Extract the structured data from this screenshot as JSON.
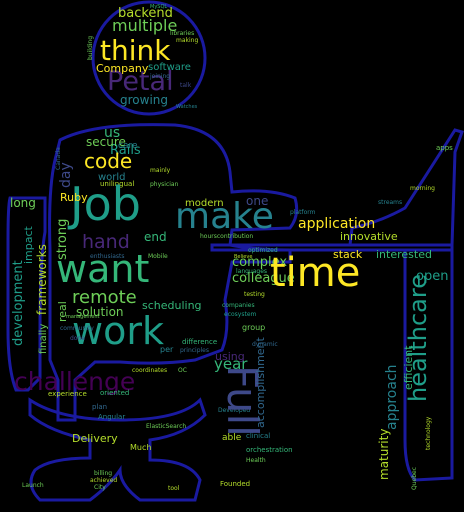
{
  "wordcloud": {
    "words": {
      "think": "think",
      "petal": "Petal",
      "backend": "backend",
      "multiple": "multiple",
      "company": "Company",
      "software": "software",
      "growing": "growing",
      "job": "Job",
      "make": "make",
      "want": "want",
      "work": "work",
      "time": "time",
      "full": "Full",
      "code": "code",
      "hand": "hand",
      "remote": "remote",
      "challenge": "challenge",
      "healthcare": "healthcare",
      "application": "application",
      "innovative": "innovative",
      "complex": "complex",
      "colleague": "colleague",
      "stack": "stack",
      "interested": "interested",
      "open": "open",
      "us": "us",
      "rails": "Rails",
      "ruby": "Ruby",
      "secure": "secure",
      "solution": "solution",
      "scheduling": "scheduling",
      "development": "development",
      "frameworks": "frameworks",
      "impact": "impact",
      "long": "long",
      "strong": "strong",
      "day": "day",
      "real": "real",
      "end": "end",
      "one": "one",
      "modern": "modern",
      "world": "world",
      "year": "year",
      "using": "using",
      "able": "able",
      "accomplishment": "accomplishment",
      "approach": "approach",
      "efficient": "efficient",
      "maturity": "maturity",
      "delivery": "Delivery",
      "much": "Much",
      "experience": "experience",
      "oriented": "oriented",
      "coordinates": "coordinates",
      "finally": "finally",
      "care": "care",
      "group": "group",
      "contribution": "hourscontribution",
      "languages": "languages",
      "orchestration": "orchestration",
      "clinical": "clinical",
      "founded": "Founded",
      "billing": "billing",
      "achieved": "achieved",
      "city": "City",
      "tool": "tool",
      "launch": "Launch",
      "angular": "Angular",
      "difference": "difference",
      "per": "per",
      "done": "done",
      "unilingual": "unilingual",
      "enthusiasts": "enthusiasts",
      "mobile": "Mobile",
      "libraries": "libraries",
      "making": "making",
      "joining": "joining",
      "talk": "talk",
      "apps": "apps",
      "morning": "morning",
      "quebec": "Quebec",
      "technology": "technology",
      "mysql": "MySQL",
      "watches": "Watches",
      "testing": "testing",
      "optimized": "optimized",
      "believe": "Believe",
      "dynamic": "dynamic",
      "health": "Health",
      "elasticsearch": "ElasticSearch",
      "principles": "principles",
      "companies": "companies",
      "ecosystem": "ecosystem",
      "mainly": "mainly",
      "management": "management",
      "community": "community",
      "physician": "physician",
      "streams": "streams",
      "oc": "OC",
      "plan": "plan",
      "developed": "Developed",
      "platform": "platform",
      "building": "building",
      "canada": "Canada"
    }
  },
  "colors": {
    "background": "#000000",
    "outline": "#1a1aa0",
    "yellow": "#fde725",
    "lime": "#b5de2b",
    "green": "#6ece58",
    "teal": "#35b779",
    "cyan": "#1f9e89",
    "blue": "#26828e",
    "navy": "#31688e",
    "indigo": "#3e4989",
    "purple": "#482878",
    "violet": "#440154"
  }
}
